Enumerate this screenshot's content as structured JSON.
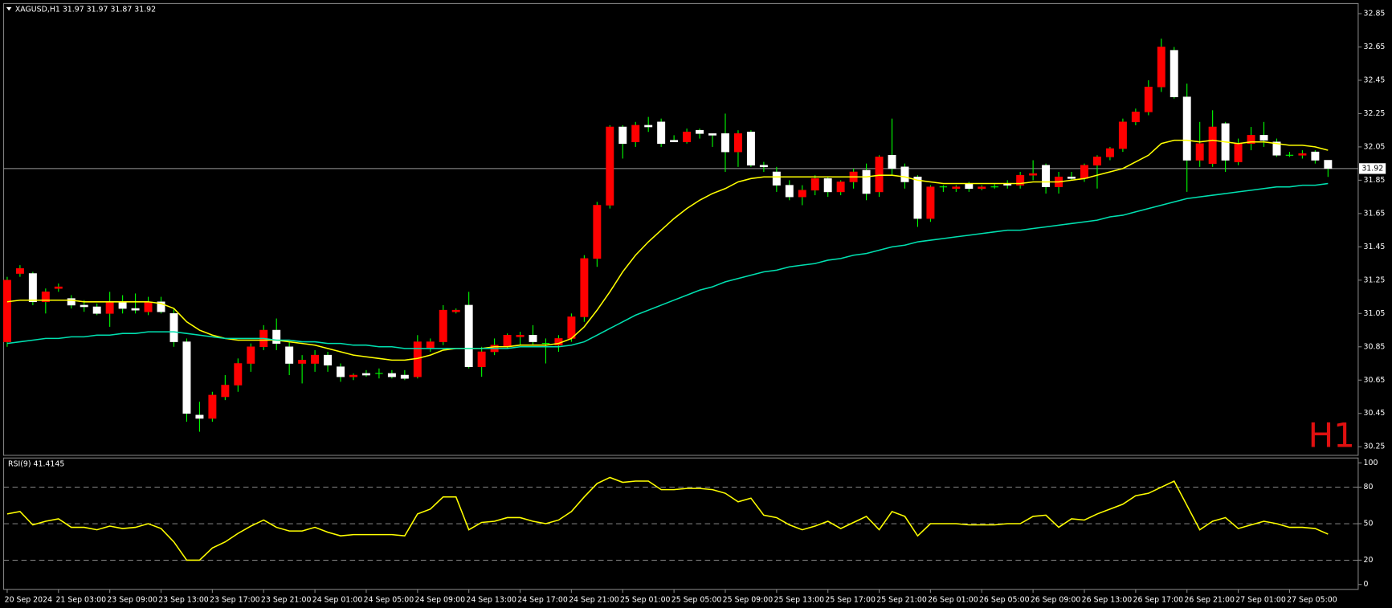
{
  "chart_data": [
    {
      "type": "candlestick",
      "title": "XAGUSD,H1  31.97 31.97 31.87 31.92",
      "watermark": "H1",
      "categories": [
        "20 Sep 2024",
        null,
        null,
        null,
        "21 Sep 03:00",
        null,
        null,
        null,
        "23 Sep 09:00",
        null,
        null,
        null,
        "23 Sep 13:00",
        null,
        null,
        null,
        "23 Sep 17:00",
        null,
        null,
        null,
        "23 Sep 21:00",
        null,
        null,
        null,
        "24 Sep 01:00",
        null,
        null,
        null,
        "24 Sep 05:00",
        null,
        null,
        null,
        "24 Sep 09:00",
        null,
        null,
        null,
        "24 Sep 13:00",
        null,
        null,
        null,
        "24 Sep 17:00",
        null,
        null,
        null,
        "24 Sep 21:00",
        null,
        null,
        null,
        "25 Sep 01:00",
        null,
        null,
        null,
        "25 Sep 05:00",
        null,
        null,
        null,
        "25 Sep 09:00",
        null,
        null,
        null,
        "25 Sep 13:00",
        null,
        null,
        null,
        "25 Sep 17:00",
        null,
        null,
        null,
        "25 Sep 21:00",
        null,
        null,
        null,
        "26 Sep 01:00",
        null,
        null,
        null,
        "26 Sep 05:00",
        null,
        null,
        null,
        "26 Sep 09:00",
        null,
        null,
        null,
        "26 Sep 13:00",
        null,
        null,
        null,
        "26 Sep 17:00",
        null,
        null,
        null,
        "26 Sep 21:00",
        null,
        null,
        null,
        "27 Sep 01:00",
        null,
        null,
        null,
        "27 Sep 05:00",
        null,
        null,
        null
      ],
      "open": [
        30.88,
        31.29,
        31.29,
        31.12,
        31.2,
        31.14,
        31.1,
        31.09,
        31.05,
        31.12,
        31.08,
        31.06,
        31.12,
        31.05,
        30.88,
        30.44,
        30.42,
        30.55,
        30.62,
        30.75,
        30.85,
        30.95,
        30.85,
        30.75,
        30.75,
        30.8,
        30.73,
        30.67,
        30.69,
        30.69,
        30.69,
        30.68,
        30.67,
        30.84,
        30.88,
        31.06,
        31.1,
        30.73,
        30.82,
        30.85,
        30.91,
        30.92,
        30.87,
        30.86,
        30.9,
        31.03,
        31.38,
        31.7,
        32.17,
        32.08,
        32.18,
        32.2,
        32.09,
        32.08,
        32.15,
        32.13,
        32.13,
        32.02,
        32.14,
        31.94,
        31.9,
        31.82,
        31.75,
        31.79,
        31.86,
        31.78,
        31.84,
        31.91,
        31.78,
        32.0,
        31.93,
        31.87,
        31.62,
        31.81,
        31.8,
        31.83,
        31.8,
        31.81,
        31.83,
        31.82,
        31.88,
        31.94,
        31.81,
        31.87,
        31.86,
        31.94,
        31.99,
        32.04,
        32.2,
        32.26,
        32.41,
        32.63,
        32.35,
        31.97,
        31.95,
        32.19,
        31.96,
        32.07,
        32.12,
        32.08,
        32.0,
        32.0,
        32.02,
        31.97
      ],
      "high": [
        31.27,
        31.34,
        31.3,
        31.2,
        31.23,
        31.16,
        31.13,
        31.11,
        31.18,
        31.16,
        31.17,
        31.15,
        31.15,
        31.08,
        30.9,
        30.52,
        30.58,
        30.68,
        30.78,
        30.87,
        30.98,
        31.02,
        30.88,
        30.8,
        30.83,
        30.82,
        30.75,
        30.69,
        30.71,
        30.72,
        30.71,
        30.71,
        30.92,
        30.9,
        31.1,
        31.08,
        31.18,
        30.85,
        30.9,
        30.93,
        30.94,
        30.98,
        30.9,
        30.92,
        31.05,
        31.4,
        31.72,
        32.18,
        32.18,
        32.2,
        32.23,
        32.22,
        32.12,
        32.16,
        32.16,
        32.13,
        32.25,
        32.15,
        32.15,
        31.96,
        31.93,
        31.85,
        31.82,
        31.88,
        31.87,
        31.85,
        31.92,
        31.95,
        32.0,
        32.22,
        31.95,
        31.88,
        31.82,
        31.82,
        31.82,
        31.84,
        31.82,
        31.83,
        31.85,
        31.9,
        31.97,
        31.95,
        31.9,
        31.9,
        31.95,
        32.0,
        32.05,
        32.22,
        32.28,
        32.45,
        32.7,
        32.65,
        32.43,
        32.2,
        32.27,
        32.2,
        32.1,
        32.17,
        32.2,
        32.1,
        32.02,
        32.03,
        32.03,
        31.97
      ],
      "low": [
        30.85,
        31.27,
        31.1,
        31.05,
        31.18,
        31.08,
        31.06,
        31.04,
        30.97,
        31.05,
        31.05,
        31.04,
        31.05,
        30.85,
        30.4,
        30.34,
        30.4,
        30.53,
        30.58,
        30.7,
        30.83,
        30.83,
        30.68,
        30.63,
        30.7,
        30.7,
        30.64,
        30.65,
        30.67,
        30.66,
        30.66,
        30.65,
        30.66,
        30.82,
        30.86,
        31.05,
        30.72,
        30.67,
        30.8,
        30.84,
        30.86,
        30.86,
        30.75,
        30.82,
        30.88,
        31.0,
        31.33,
        31.68,
        31.98,
        32.05,
        32.14,
        32.05,
        32.08,
        32.07,
        32.1,
        32.05,
        31.9,
        31.93,
        31.93,
        31.9,
        31.78,
        31.73,
        31.7,
        31.76,
        31.75,
        31.76,
        31.8,
        31.73,
        31.75,
        31.88,
        31.8,
        31.57,
        31.6,
        31.78,
        31.78,
        31.78,
        31.79,
        31.8,
        31.8,
        31.8,
        31.85,
        31.77,
        31.77,
        31.85,
        31.84,
        31.8,
        31.97,
        32.02,
        32.18,
        32.24,
        32.38,
        32.34,
        31.78,
        31.93,
        31.93,
        31.9,
        31.94,
        32.03,
        32.05,
        31.99,
        31.99,
        31.98,
        31.95,
        31.87
      ],
      "close": [
        31.25,
        31.32,
        31.12,
        31.18,
        31.21,
        31.1,
        31.09,
        31.05,
        31.12,
        31.08,
        31.07,
        31.12,
        31.06,
        30.88,
        30.45,
        30.42,
        30.56,
        30.62,
        30.75,
        30.85,
        30.95,
        30.87,
        30.75,
        30.77,
        30.8,
        30.74,
        30.67,
        30.68,
        30.68,
        30.69,
        30.67,
        30.66,
        30.88,
        30.88,
        31.07,
        31.07,
        30.73,
        30.82,
        30.86,
        30.92,
        30.92,
        30.88,
        30.87,
        30.9,
        31.03,
        31.38,
        31.7,
        32.17,
        32.07,
        32.18,
        32.17,
        32.07,
        32.08,
        32.14,
        32.13,
        32.12,
        32.02,
        32.13,
        31.94,
        31.93,
        31.82,
        31.75,
        31.79,
        31.86,
        31.78,
        31.84,
        31.9,
        31.77,
        31.99,
        31.92,
        31.84,
        31.62,
        31.81,
        31.81,
        31.81,
        31.8,
        31.81,
        31.81,
        31.82,
        31.88,
        31.89,
        31.81,
        31.87,
        31.86,
        31.94,
        31.99,
        32.04,
        32.2,
        32.26,
        32.41,
        32.65,
        32.35,
        31.97,
        32.07,
        32.17,
        31.97,
        32.07,
        32.12,
        32.09,
        32.0,
        32.0,
        32.01,
        31.97,
        31.92
      ],
      "bull_color": "#ff0000",
      "bear_color": "#ffffff",
      "wick_color": "#00ff00",
      "lines": [
        {
          "color": "#ffff00",
          "values": [
            31.12,
            31.13,
            31.13,
            31.13,
            31.13,
            31.13,
            31.12,
            31.12,
            31.12,
            31.12,
            31.12,
            31.12,
            31.11,
            31.08,
            31.0,
            30.95,
            30.92,
            30.9,
            30.89,
            30.89,
            30.89,
            30.89,
            30.88,
            30.87,
            30.86,
            30.84,
            30.82,
            30.8,
            30.79,
            30.78,
            30.77,
            30.77,
            30.78,
            30.8,
            30.83,
            30.84,
            30.84,
            30.84,
            30.85,
            30.85,
            30.86,
            30.86,
            30.86,
            30.87,
            30.9,
            30.97,
            31.07,
            31.18,
            31.3,
            31.4,
            31.48,
            31.55,
            31.62,
            31.68,
            31.73,
            31.77,
            31.8,
            31.84,
            31.86,
            31.87,
            31.87,
            31.87,
            31.87,
            31.87,
            31.87,
            31.87,
            31.87,
            31.87,
            31.88,
            31.88,
            31.87,
            31.85,
            31.84,
            31.83,
            31.83,
            31.83,
            31.83,
            31.83,
            31.83,
            31.83,
            31.84,
            31.84,
            31.84,
            31.85,
            31.86,
            31.88,
            31.9,
            31.92,
            31.96,
            32.0,
            32.07,
            32.09,
            32.09,
            32.08,
            32.09,
            32.08,
            32.07,
            32.08,
            32.08,
            32.07,
            32.06,
            32.06,
            32.05,
            32.03
          ]
        },
        {
          "color": "#00e0b0",
          "values": [
            30.87,
            30.88,
            30.89,
            30.9,
            30.9,
            30.91,
            30.91,
            30.92,
            30.92,
            30.93,
            30.93,
            30.94,
            30.94,
            30.94,
            30.93,
            30.92,
            30.91,
            30.9,
            30.9,
            30.9,
            30.9,
            30.89,
            30.89,
            30.88,
            30.88,
            30.87,
            30.87,
            30.86,
            30.86,
            30.85,
            30.85,
            30.84,
            30.84,
            30.84,
            30.84,
            30.84,
            30.84,
            30.84,
            30.84,
            30.84,
            30.85,
            30.85,
            30.85,
            30.85,
            30.86,
            30.88,
            30.92,
            30.96,
            31.0,
            31.04,
            31.07,
            31.1,
            31.13,
            31.16,
            31.19,
            31.21,
            31.24,
            31.26,
            31.28,
            31.3,
            31.31,
            31.33,
            31.34,
            31.35,
            31.37,
            31.38,
            31.4,
            31.41,
            31.43,
            31.45,
            31.46,
            31.48,
            31.49,
            31.5,
            31.51,
            31.52,
            31.53,
            31.54,
            31.55,
            31.55,
            31.56,
            31.57,
            31.58,
            31.59,
            31.6,
            31.61,
            31.63,
            31.64,
            31.66,
            31.68,
            31.7,
            31.72,
            31.74,
            31.75,
            31.76,
            31.77,
            31.78,
            31.79,
            31.8,
            31.81,
            31.81,
            31.82,
            31.82,
            31.83
          ]
        }
      ],
      "price_line": 31.92,
      "ylim": [
        30.2,
        32.9
      ],
      "yticks": [
        30.25,
        30.45,
        30.65,
        30.85,
        31.05,
        31.25,
        31.45,
        31.65,
        31.85,
        32.05,
        32.25,
        32.45,
        32.65,
        32.85
      ]
    },
    {
      "type": "line",
      "title": "RSI(9) 41.4145",
      "series": [
        {
          "color": "#ffff00",
          "values": [
            58,
            60,
            49,
            52,
            54,
            47,
            47,
            45,
            48,
            46,
            47,
            50,
            46,
            35,
            20,
            20,
            30,
            35,
            42,
            48,
            53,
            47,
            44,
            44,
            47,
            43,
            40,
            41,
            41,
            41,
            41,
            40,
            58,
            62,
            72,
            72,
            45,
            51,
            52,
            55,
            55,
            52,
            50,
            53,
            60,
            72,
            83,
            88,
            84,
            85,
            85,
            78,
            78,
            79,
            79,
            78,
            75,
            68,
            71,
            57,
            55,
            49,
            45,
            48,
            52,
            46,
            51,
            56,
            45,
            60,
            56,
            40,
            50,
            50,
            50,
            49,
            49,
            49,
            50,
            50,
            56,
            57,
            47,
            54,
            53,
            58,
            62,
            66,
            73,
            75,
            80,
            85,
            65,
            45,
            52,
            55,
            46,
            49,
            52,
            50,
            47,
            47,
            46,
            41.4145
          ]
        }
      ],
      "levels": [
        20,
        50,
        80
      ],
      "ylim": [
        -4,
        104
      ],
      "yticks": [
        0,
        20,
        50,
        80,
        100
      ]
    }
  ]
}
